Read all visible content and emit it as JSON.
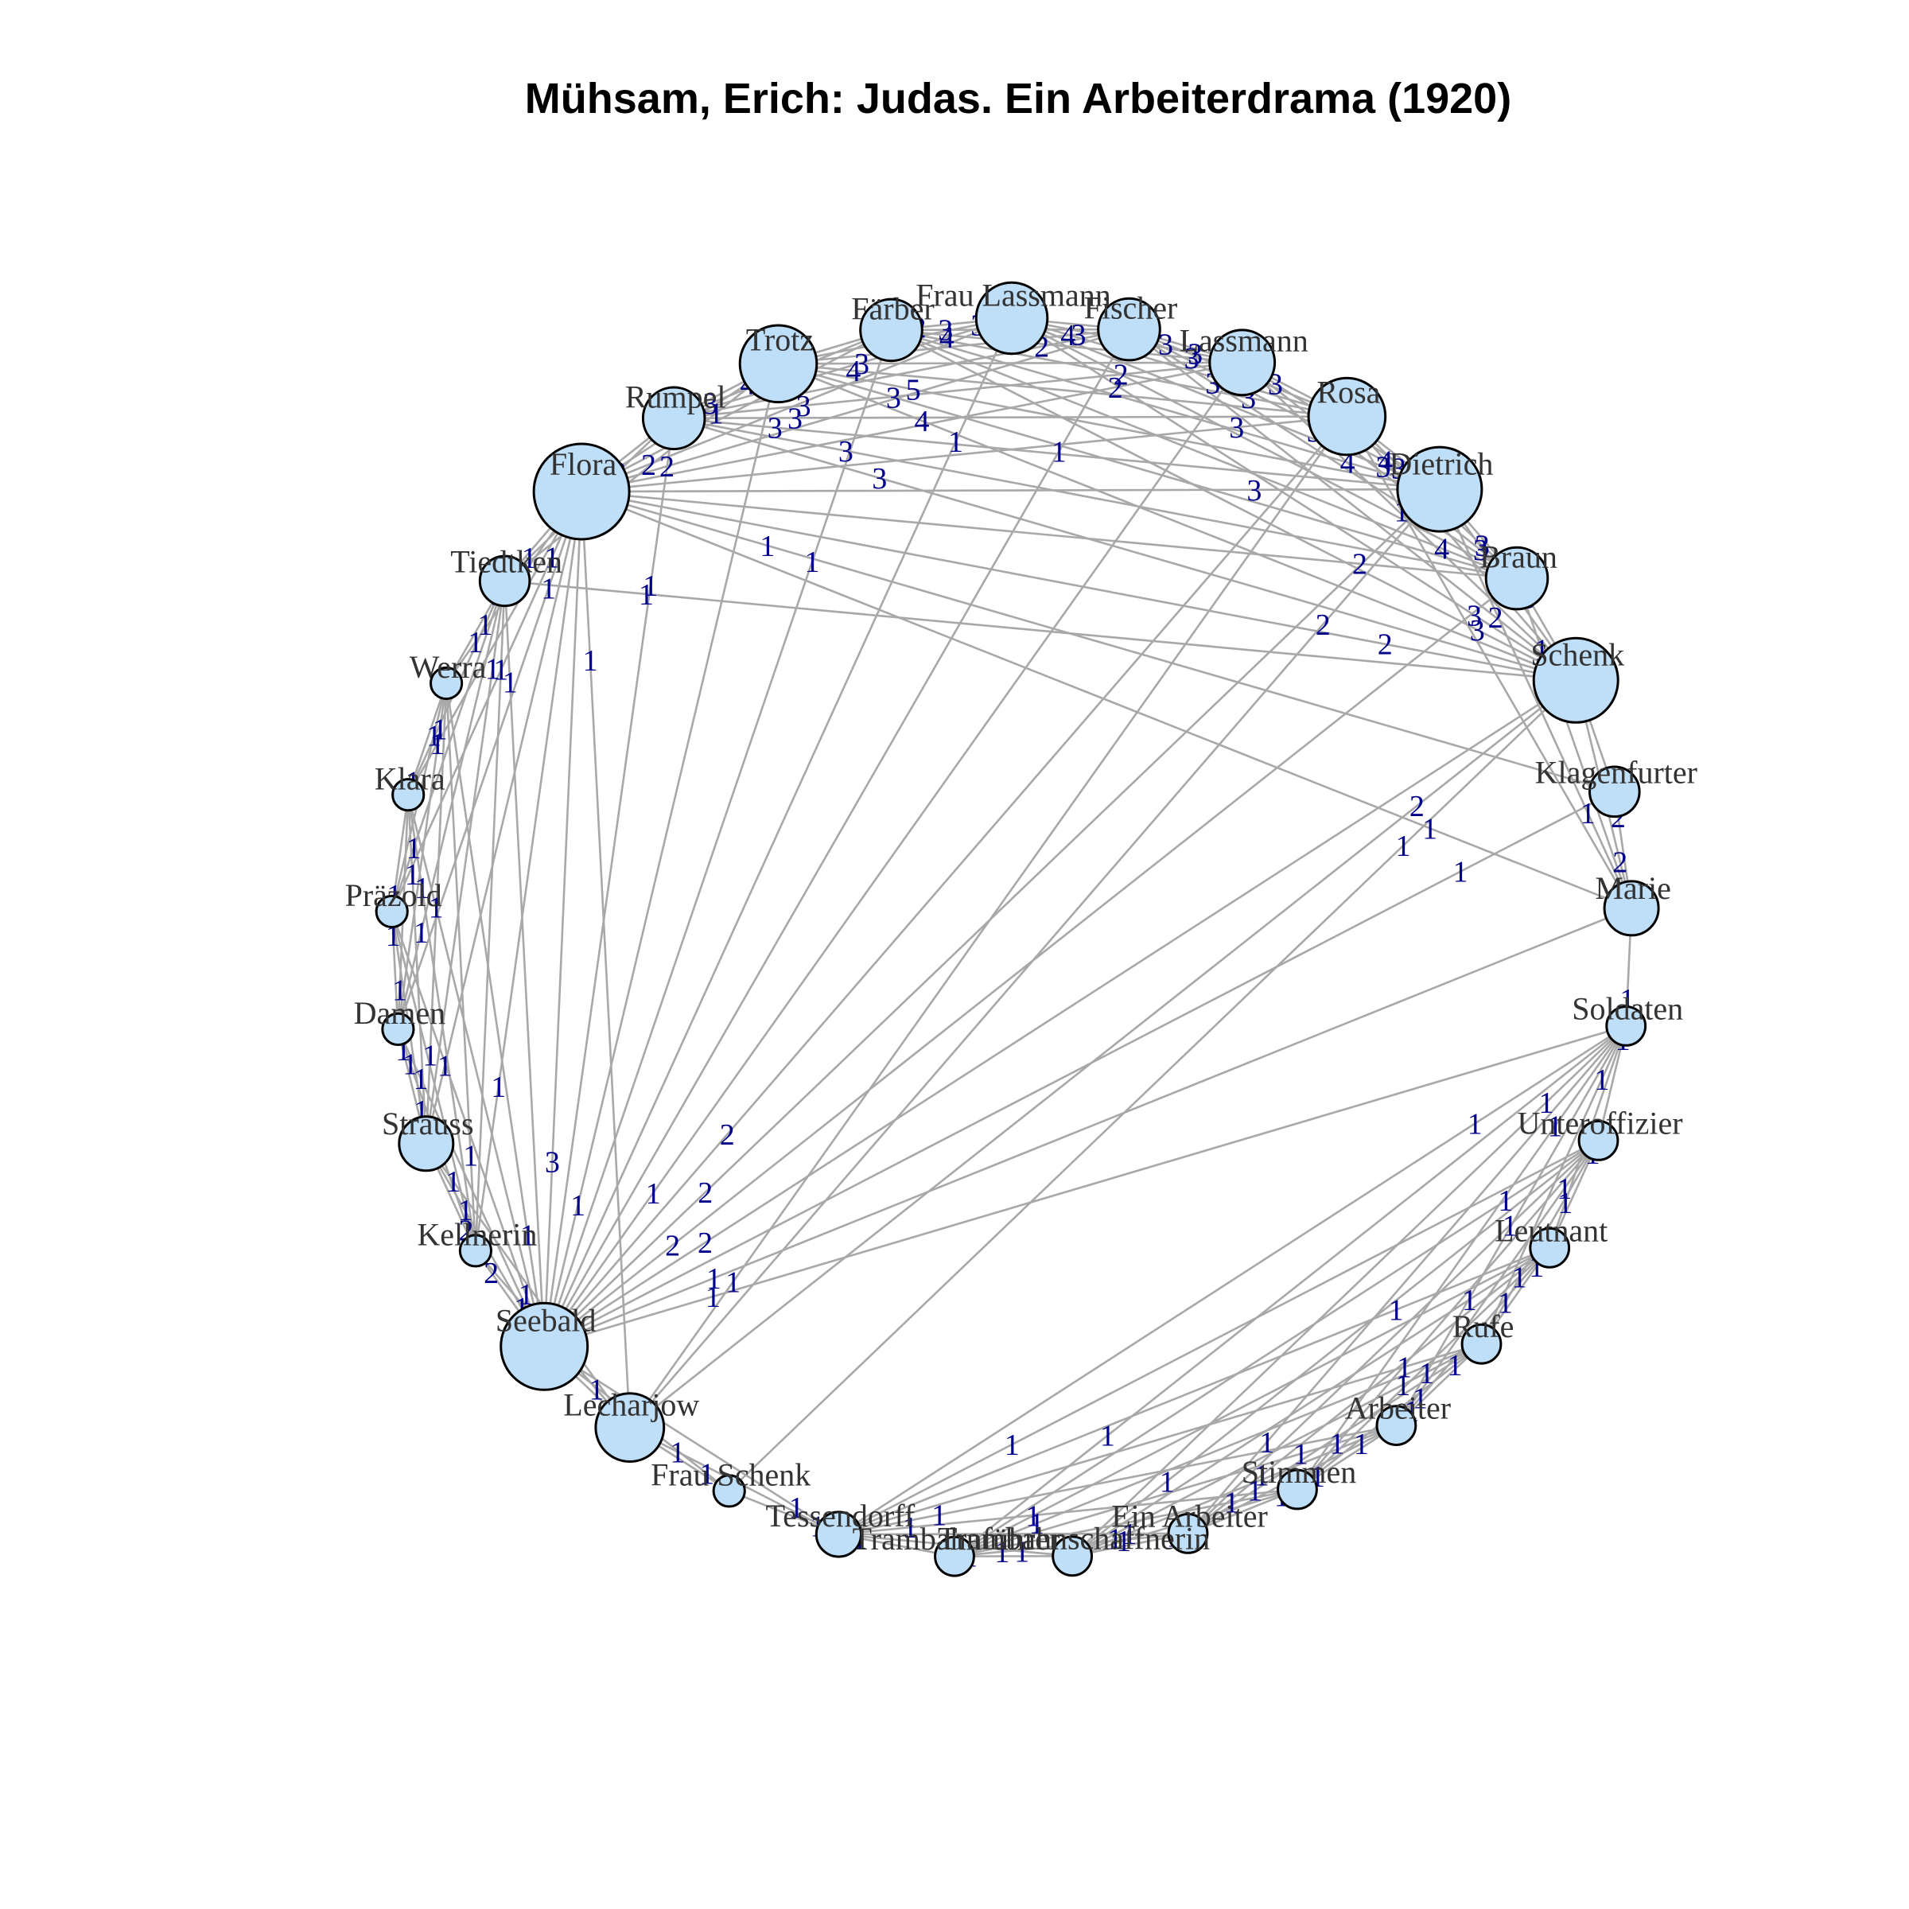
{
  "title": "Mühsam, Erich: Judas. Ein Arbeiterdrama (1920)",
  "colors": {
    "node_fill": "#bfdef7",
    "node_stroke": "#000000",
    "edge": "#a8a8a8",
    "edge_label": "#00008b",
    "node_label": "#333333"
  },
  "nodes": [
    {
      "id": "frau_lassmann",
      "label": "Frau Lassmann",
      "weight": 10
    },
    {
      "id": "fischer",
      "label": "Fischer",
      "weight": 7
    },
    {
      "id": "lassmann",
      "label": "Lassmann",
      "weight": 8
    },
    {
      "id": "rosa",
      "label": "Rosa",
      "weight": 12
    },
    {
      "id": "dietrich",
      "label": "Dietrich",
      "weight": 15
    },
    {
      "id": "braun",
      "label": "Braun",
      "weight": 7
    },
    {
      "id": "schenk",
      "label": "Schenk",
      "weight": 15
    },
    {
      "id": "klagenfurter",
      "label": "Klagenfurter",
      "weight": 4
    },
    {
      "id": "marie",
      "label": "Marie",
      "weight": 5
    },
    {
      "id": "soldaten",
      "label": "Soldaten",
      "weight": 2
    },
    {
      "id": "unteroffizier",
      "label": "Unteroffizier",
      "weight": 2
    },
    {
      "id": "leutnant",
      "label": "Leutnant",
      "weight": 2
    },
    {
      "id": "rufe",
      "label": "Rufe",
      "weight": 2
    },
    {
      "id": "arbeiter",
      "label": "Arbeiter",
      "weight": 2
    },
    {
      "id": "stimmen",
      "label": "Stimmen",
      "weight": 2
    },
    {
      "id": "ein_arbeiter",
      "label": "Ein Arbeiter",
      "weight": 2
    },
    {
      "id": "trambahnschaffnerin",
      "label": "Trambahnschaffnerin",
      "weight": 2
    },
    {
      "id": "trambahnfuehrer",
      "label": "Trambahnführer",
      "weight": 2
    },
    {
      "id": "tessendorff",
      "label": "Tessendorff",
      "weight": 3
    },
    {
      "id": "frau_schenk",
      "label": "Frau Schenk",
      "weight": 1
    },
    {
      "id": "lecharjow",
      "label": "Lecharjow",
      "weight": 9
    },
    {
      "id": "seebald",
      "label": "Seebald",
      "weight": 16
    },
    {
      "id": "kellnerin",
      "label": "Kellnerin",
      "weight": 1
    },
    {
      "id": "strauss",
      "label": "Strauss",
      "weight": 5
    },
    {
      "id": "damen",
      "label": "Damen",
      "weight": 1
    },
    {
      "id": "praezold",
      "label": "Präzold",
      "weight": 1
    },
    {
      "id": "klara",
      "label": "Klara",
      "weight": 1
    },
    {
      "id": "werra",
      "label": "Werra",
      "weight": 1
    },
    {
      "id": "tiedtken",
      "label": "Tiedtken",
      "weight": 4
    },
    {
      "id": "flora",
      "label": "Flora",
      "weight": 20
    },
    {
      "id": "rumpel",
      "label": "Rumpel",
      "weight": 7
    },
    {
      "id": "trotz",
      "label": "Trotz",
      "weight": 12
    },
    {
      "id": "faerber",
      "label": "Färber",
      "weight": 7
    }
  ],
  "edges": [
    [
      "frau_lassmann",
      "fischer",
      2
    ],
    [
      "frau_lassmann",
      "lassmann",
      3
    ],
    [
      "frau_lassmann",
      "rosa",
      4
    ],
    [
      "frau_lassmann",
      "dietrich",
      3
    ],
    [
      "frau_lassmann",
      "braun",
      2
    ],
    [
      "frau_lassmann",
      "schenk",
      3
    ],
    [
      "frau_lassmann",
      "trotz",
      3
    ],
    [
      "frau_lassmann",
      "faerber",
      2
    ],
    [
      "frau_lassmann",
      "rumpel",
      4
    ],
    [
      "frau_lassmann",
      "flora",
      2
    ],
    [
      "frau_lassmann",
      "seebald",
      1
    ],
    [
      "fischer",
      "lassmann",
      2
    ],
    [
      "fischer",
      "rosa",
      3
    ],
    [
      "fischer",
      "dietrich",
      3
    ],
    [
      "fischer",
      "braun",
      3
    ],
    [
      "fischer",
      "schenk",
      2
    ],
    [
      "fischer",
      "trotz",
      3
    ],
    [
      "fischer",
      "faerber",
      3
    ],
    [
      "fischer",
      "rumpel",
      2
    ],
    [
      "fischer",
      "flora",
      2
    ],
    [
      "fischer",
      "seebald",
      1
    ],
    [
      "lassmann",
      "rosa",
      3
    ],
    [
      "lassmann",
      "dietrich",
      3
    ],
    [
      "lassmann",
      "braun",
      3
    ],
    [
      "lassmann",
      "schenk",
      3
    ],
    [
      "lassmann",
      "trotz",
      3
    ],
    [
      "lassmann",
      "faerber",
      3
    ],
    [
      "lassmann",
      "rumpel",
      3
    ],
    [
      "lassmann",
      "flora",
      2
    ],
    [
      "lassmann",
      "seebald",
      1
    ],
    [
      "rosa",
      "dietrich",
      4
    ],
    [
      "rosa",
      "braun",
      3
    ],
    [
      "rosa",
      "schenk",
      4
    ],
    [
      "rosa",
      "trotz",
      4
    ],
    [
      "rosa",
      "faerber",
      3
    ],
    [
      "rosa",
      "rumpel",
      3
    ],
    [
      "rosa",
      "flora",
      3
    ],
    [
      "rosa",
      "seebald",
      2
    ],
    [
      "rosa",
      "marie",
      1
    ],
    [
      "dietrich",
      "braun",
      4
    ],
    [
      "dietrich",
      "schenk",
      3
    ],
    [
      "dietrich",
      "trotz",
      5
    ],
    [
      "dietrich",
      "faerber",
      4
    ],
    [
      "dietrich",
      "rumpel",
      3
    ],
    [
      "dietrich",
      "flora",
      3
    ],
    [
      "dietrich",
      "seebald",
      2
    ],
    [
      "dietrich",
      "lecharjow",
      2
    ],
    [
      "dietrich",
      "marie",
      1
    ],
    [
      "braun",
      "schenk",
      5
    ],
    [
      "braun",
      "trotz",
      3
    ],
    [
      "braun",
      "faerber",
      4
    ],
    [
      "braun",
      "rumpel",
      3
    ],
    [
      "braun",
      "flora",
      2
    ],
    [
      "braun",
      "seebald",
      2
    ],
    [
      "braun",
      "marie",
      1
    ],
    [
      "schenk",
      "trotz",
      4
    ],
    [
      "schenk",
      "faerber",
      3
    ],
    [
      "schenk",
      "rumpel",
      3
    ],
    [
      "schenk",
      "flora",
      2
    ],
    [
      "schenk",
      "seebald",
      2
    ],
    [
      "schenk",
      "klagenfurter",
      2
    ],
    [
      "schenk",
      "marie",
      2
    ],
    [
      "schenk",
      "lecharjow",
      2
    ],
    [
      "schenk",
      "tiedtken",
      1
    ],
    [
      "klagenfurter",
      "marie",
      2
    ],
    [
      "klagenfurter",
      "flora",
      1
    ],
    [
      "klagenfurter",
      "seebald",
      1
    ],
    [
      "marie",
      "soldaten",
      1
    ],
    [
      "marie",
      "flora",
      1
    ],
    [
      "marie",
      "seebald",
      1
    ],
    [
      "soldaten",
      "unteroffizier",
      1
    ],
    [
      "soldaten",
      "leutnant",
      1
    ],
    [
      "soldaten",
      "rufe",
      1
    ],
    [
      "soldaten",
      "arbeiter",
      1
    ],
    [
      "soldaten",
      "stimmen",
      1
    ],
    [
      "soldaten",
      "ein_arbeiter",
      1
    ],
    [
      "soldaten",
      "trambahnschaffnerin",
      1
    ],
    [
      "soldaten",
      "trambahnfuehrer",
      1
    ],
    [
      "soldaten",
      "tessendorff",
      1
    ],
    [
      "soldaten",
      "seebald",
      1
    ],
    [
      "unteroffizier",
      "leutnant",
      1
    ],
    [
      "unteroffizier",
      "rufe",
      1
    ],
    [
      "unteroffizier",
      "arbeiter",
      1
    ],
    [
      "unteroffizier",
      "stimmen",
      1
    ],
    [
      "unteroffizier",
      "ein_arbeiter",
      1
    ],
    [
      "unteroffizier",
      "trambahnschaffnerin",
      1
    ],
    [
      "unteroffizier",
      "trambahnfuehrer",
      1
    ],
    [
      "unteroffizier",
      "tessendorff",
      1
    ],
    [
      "leutnant",
      "rufe",
      1
    ],
    [
      "leutnant",
      "arbeiter",
      1
    ],
    [
      "leutnant",
      "stimmen",
      1
    ],
    [
      "leutnant",
      "ein_arbeiter",
      1
    ],
    [
      "leutnant",
      "trambahnschaffnerin",
      1
    ],
    [
      "leutnant",
      "trambahnfuehrer",
      1
    ],
    [
      "leutnant",
      "tessendorff",
      1
    ],
    [
      "rufe",
      "arbeiter",
      1
    ],
    [
      "rufe",
      "stimmen",
      1
    ],
    [
      "rufe",
      "ein_arbeiter",
      1
    ],
    [
      "rufe",
      "trambahnschaffnerin",
      1
    ],
    [
      "rufe",
      "trambahnfuehrer",
      1
    ],
    [
      "rufe",
      "tessendorff",
      1
    ],
    [
      "arbeiter",
      "stimmen",
      1
    ],
    [
      "arbeiter",
      "ein_arbeiter",
      1
    ],
    [
      "arbeiter",
      "trambahnschaffnerin",
      1
    ],
    [
      "arbeiter",
      "trambahnfuehrer",
      1
    ],
    [
      "arbeiter",
      "tessendorff",
      1
    ],
    [
      "stimmen",
      "ein_arbeiter",
      1
    ],
    [
      "stimmen",
      "trambahnschaffnerin",
      1
    ],
    [
      "stimmen",
      "trambahnfuehrer",
      1
    ],
    [
      "stimmen",
      "tessendorff",
      1
    ],
    [
      "ein_arbeiter",
      "trambahnschaffnerin",
      1
    ],
    [
      "ein_arbeiter",
      "trambahnfuehrer",
      1
    ],
    [
      "ein_arbeiter",
      "tessendorff",
      1
    ],
    [
      "trambahnschaffnerin",
      "trambahnfuehrer",
      1
    ],
    [
      "trambahnschaffnerin",
      "tessendorff",
      1
    ],
    [
      "trambahnfuehrer",
      "tessendorff",
      1
    ],
    [
      "tessendorff",
      "seebald",
      1
    ],
    [
      "tessendorff",
      "lecharjow",
      1
    ],
    [
      "tessendorff",
      "frau_schenk",
      1
    ],
    [
      "frau_schenk",
      "lecharjow",
      1
    ],
    [
      "frau_schenk",
      "seebald",
      1
    ],
    [
      "frau_schenk",
      "schenk",
      1
    ],
    [
      "lecharjow",
      "seebald",
      3
    ],
    [
      "lecharjow",
      "strauss",
      1
    ],
    [
      "lecharjow",
      "kellnerin",
      1
    ],
    [
      "lecharjow",
      "flora",
      1
    ],
    [
      "lecharjow",
      "rosa",
      1
    ],
    [
      "seebald",
      "kellnerin",
      2
    ],
    [
      "seebald",
      "strauss",
      1
    ],
    [
      "seebald",
      "damen",
      1
    ],
    [
      "seebald",
      "praezold",
      1
    ],
    [
      "seebald",
      "klara",
      1
    ],
    [
      "seebald",
      "werra",
      1
    ],
    [
      "seebald",
      "tiedtken",
      1
    ],
    [
      "seebald",
      "flora",
      3
    ],
    [
      "seebald",
      "rumpel",
      1
    ],
    [
      "seebald",
      "trotz",
      1
    ],
    [
      "seebald",
      "faerber",
      1
    ],
    [
      "kellnerin",
      "strauss",
      2
    ],
    [
      "kellnerin",
      "damen",
      1
    ],
    [
      "kellnerin",
      "praezold",
      1
    ],
    [
      "kellnerin",
      "klara",
      1
    ],
    [
      "kellnerin",
      "werra",
      1
    ],
    [
      "kellnerin",
      "tiedtken",
      1
    ],
    [
      "kellnerin",
      "flora",
      1
    ],
    [
      "strauss",
      "damen",
      1
    ],
    [
      "strauss",
      "praezold",
      1
    ],
    [
      "strauss",
      "klara",
      1
    ],
    [
      "strauss",
      "werra",
      1
    ],
    [
      "strauss",
      "tiedtken",
      1
    ],
    [
      "strauss",
      "flora",
      1
    ],
    [
      "damen",
      "praezold",
      1
    ],
    [
      "damen",
      "klara",
      1
    ],
    [
      "damen",
      "werra",
      1
    ],
    [
      "damen",
      "tiedtken",
      1
    ],
    [
      "damen",
      "flora",
      1
    ],
    [
      "praezold",
      "klara",
      1
    ],
    [
      "praezold",
      "werra",
      1
    ],
    [
      "praezold",
      "tiedtken",
      1
    ],
    [
      "praezold",
      "flora",
      1
    ],
    [
      "klara",
      "werra",
      1
    ],
    [
      "klara",
      "tiedtken",
      1
    ],
    [
      "klara",
      "flora",
      1
    ],
    [
      "werra",
      "tiedtken",
      1
    ],
    [
      "werra",
      "flora",
      1
    ],
    [
      "tiedtken",
      "flora",
      2
    ],
    [
      "tiedtken",
      "rumpel",
      1
    ],
    [
      "tiedtken",
      "trotz",
      1
    ],
    [
      "flora",
      "rumpel",
      3
    ],
    [
      "flora",
      "trotz",
      4
    ],
    [
      "flora",
      "faerber",
      2
    ],
    [
      "rumpel",
      "trotz",
      4
    ],
    [
      "rumpel",
      "faerber",
      3
    ],
    [
      "trotz",
      "faerber",
      3
    ]
  ]
}
